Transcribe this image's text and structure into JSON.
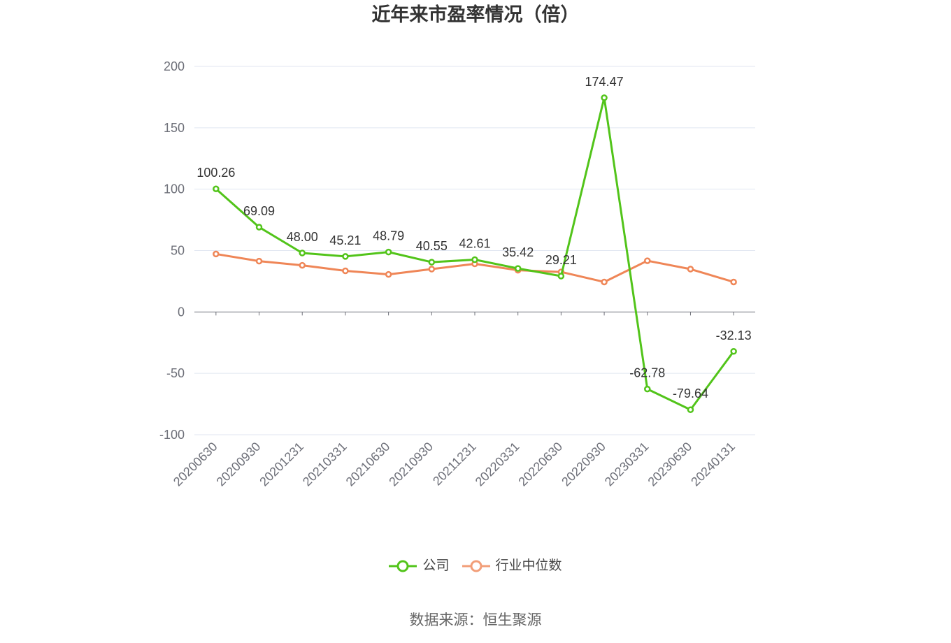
{
  "source": "数据来源：恒生聚源",
  "chart_data": {
    "type": "line",
    "title": "近年来市盈率情况（倍）",
    "categories": [
      "20200630",
      "20200930",
      "20201231",
      "20210331",
      "20210630",
      "20210930",
      "20211231",
      "20220331",
      "20220630",
      "20220930",
      "20230331",
      "20230630",
      "20240131"
    ],
    "series": [
      {
        "name": "公司",
        "color": "#52C41A",
        "data_labels": true,
        "values": [
          100.26,
          69.09,
          48.0,
          45.21,
          48.79,
          40.55,
          42.61,
          35.42,
          29.21,
          174.47,
          -62.78,
          -79.64,
          -32.13
        ]
      },
      {
        "name": "行业中位数",
        "color": "#EF8657",
        "data_labels": false,
        "values": [
          47.2,
          41.4,
          38.0,
          33.5,
          30.6,
          34.9,
          39.2,
          34.0,
          32.6,
          24.4,
          41.7,
          34.9,
          24.4
        ]
      }
    ],
    "ylim": [
      -100,
      200
    ],
    "yticks": [
      200,
      150,
      100,
      50,
      0,
      -50,
      -100
    ],
    "grid": true,
    "legend": "bottom-center"
  }
}
